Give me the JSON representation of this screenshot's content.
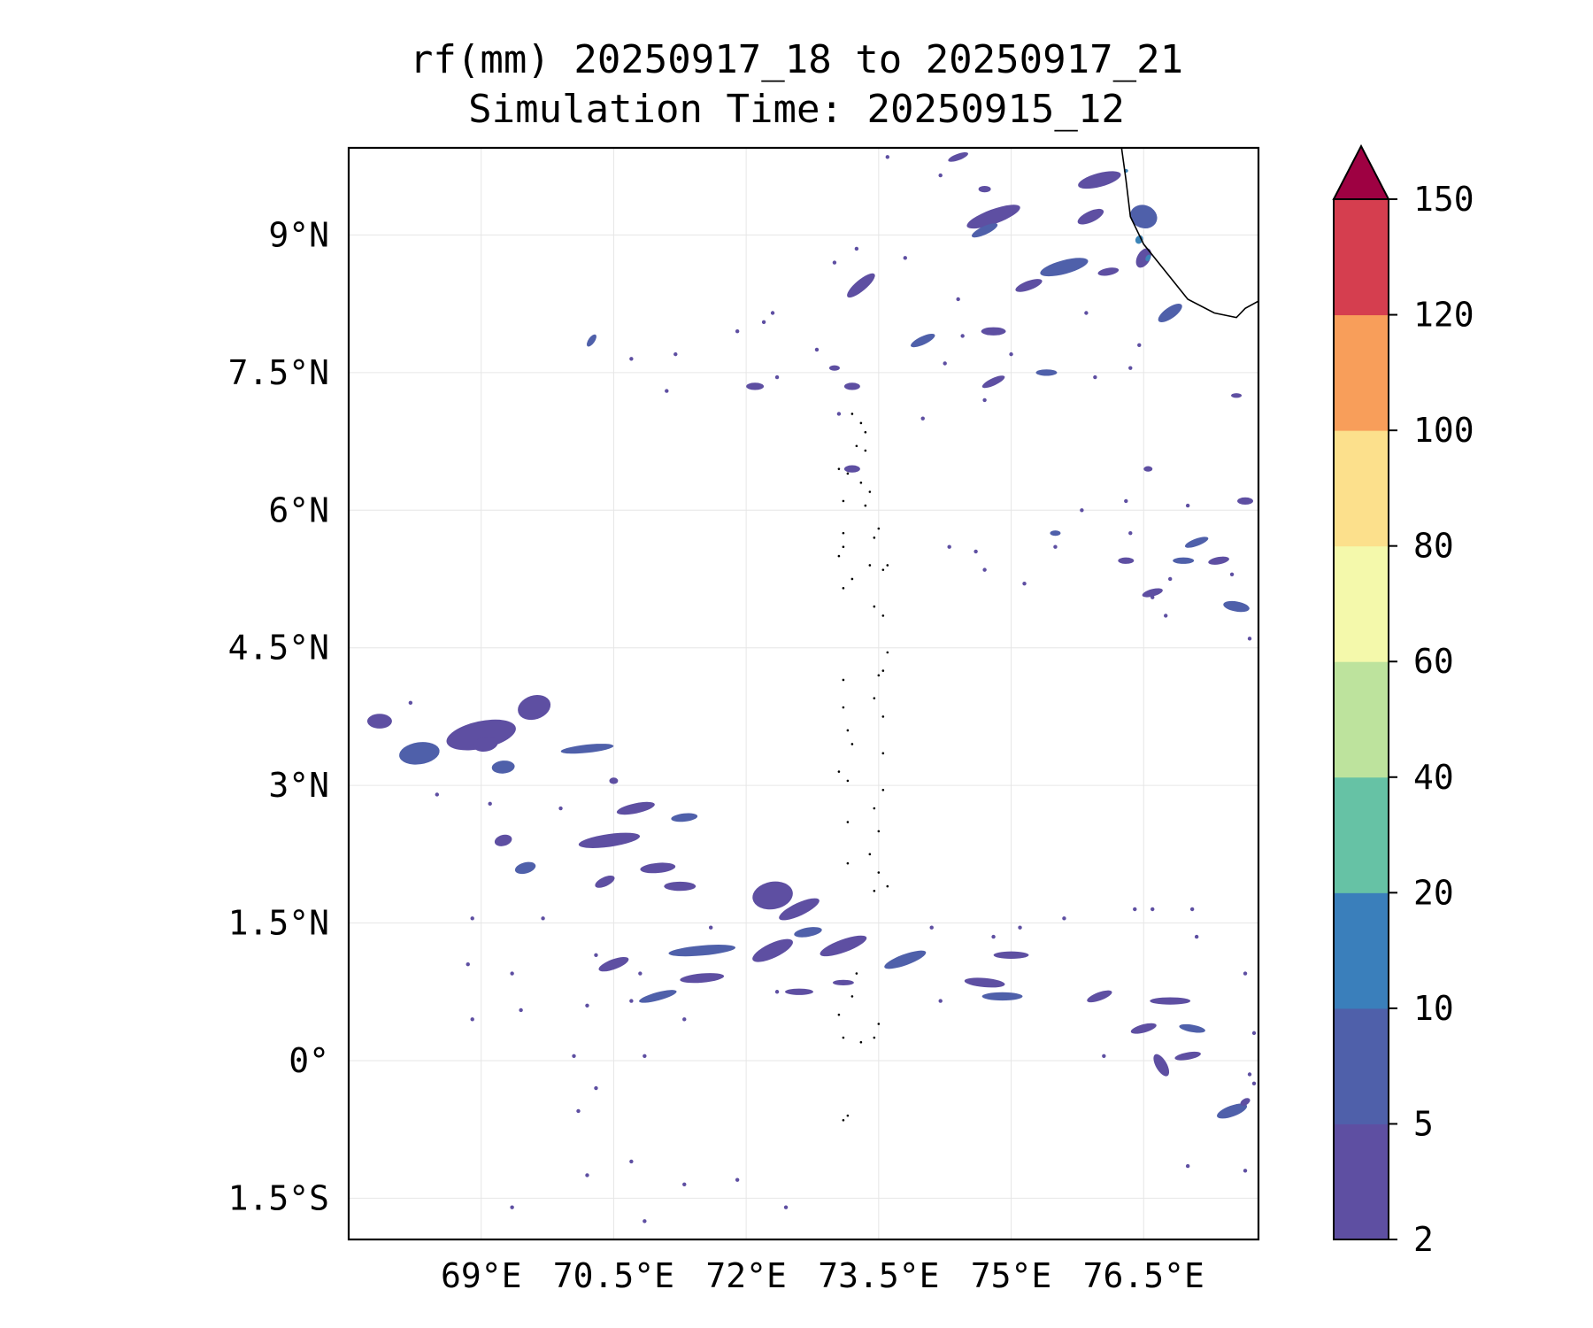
{
  "title": {
    "line1": "rf(mm) 20250917_18 to 20250917_21",
    "line2": "Simulation Time: 20250915_12"
  },
  "map": {
    "lon_range": [
      67.5,
      77.8
    ],
    "lat_range": [
      -1.95,
      9.95
    ],
    "lat_ticks": [
      {
        "value": 9,
        "label": "9°N"
      },
      {
        "value": 7.5,
        "label": "7.5°N"
      },
      {
        "value": 6,
        "label": "6°N"
      },
      {
        "value": 4.5,
        "label": "4.5°N"
      },
      {
        "value": 3,
        "label": "3°N"
      },
      {
        "value": 1.5,
        "label": "1.5°N"
      },
      {
        "value": 0,
        "label": "0°"
      },
      {
        "value": -1.5,
        "label": "1.5°S"
      }
    ],
    "lon_ticks": [
      {
        "value": 69,
        "label": "69°E"
      },
      {
        "value": 70.5,
        "label": "70.5°E"
      },
      {
        "value": 72,
        "label": "72°E"
      },
      {
        "value": 73.5,
        "label": "73.5°E"
      },
      {
        "value": 75,
        "label": "75°E"
      },
      {
        "value": 76.5,
        "label": "76.5°E"
      }
    ],
    "gridlines": true,
    "coastline_india": [
      [
        76.25,
        9.95
      ],
      [
        76.3,
        9.6
      ],
      [
        76.35,
        9.2
      ],
      [
        76.5,
        8.9
      ],
      [
        76.75,
        8.6
      ],
      [
        77.0,
        8.3
      ],
      [
        77.3,
        8.15
      ],
      [
        77.55,
        8.1
      ],
      [
        77.65,
        8.2
      ],
      [
        77.8,
        8.28
      ]
    ],
    "maldives_atolls": [
      [
        73.2,
        7.05
      ],
      [
        73.3,
        6.95
      ],
      [
        73.35,
        6.85
      ],
      [
        73.25,
        6.7
      ],
      [
        73.35,
        6.65
      ],
      [
        73.05,
        6.45
      ],
      [
        73.15,
        6.4
      ],
      [
        73.3,
        6.3
      ],
      [
        73.4,
        6.2
      ],
      [
        73.1,
        6.1
      ],
      [
        73.35,
        6.05
      ],
      [
        73.5,
        5.8
      ],
      [
        73.45,
        5.7
      ],
      [
        73.1,
        5.75
      ],
      [
        73.1,
        5.6
      ],
      [
        73.05,
        5.5
      ],
      [
        73.4,
        5.4
      ],
      [
        73.55,
        5.35
      ],
      [
        73.6,
        5.4
      ],
      [
        73.2,
        5.25
      ],
      [
        73.1,
        5.15
      ],
      [
        73.45,
        4.95
      ],
      [
        73.55,
        4.85
      ],
      [
        73.6,
        4.45
      ],
      [
        73.5,
        4.2
      ],
      [
        73.55,
        4.25
      ],
      [
        73.1,
        4.15
      ],
      [
        73.45,
        3.95
      ],
      [
        73.1,
        3.85
      ],
      [
        73.55,
        3.75
      ],
      [
        73.15,
        3.6
      ],
      [
        73.2,
        3.45
      ],
      [
        73.55,
        3.35
      ],
      [
        73.05,
        3.15
      ],
      [
        73.15,
        3.05
      ],
      [
        73.55,
        2.95
      ],
      [
        73.45,
        2.75
      ],
      [
        73.15,
        2.6
      ],
      [
        73.5,
        2.5
      ],
      [
        73.4,
        2.25
      ],
      [
        73.15,
        2.15
      ],
      [
        73.5,
        2.05
      ],
      [
        73.6,
        1.9
      ],
      [
        73.45,
        1.85
      ],
      [
        73.25,
        0.95
      ],
      [
        73.2,
        0.7
      ],
      [
        73.05,
        0.5
      ],
      [
        73.1,
        0.25
      ],
      [
        73.3,
        0.2
      ],
      [
        73.45,
        0.25
      ],
      [
        73.5,
        0.4
      ],
      [
        73.15,
        -0.6
      ],
      [
        73.1,
        -0.65
      ]
    ]
  },
  "rain_shading": {
    "legend_min": "2",
    "colors": {
      "2-5": "#5e4fa2",
      "5-10": "#4f60aa",
      "10-20": "#3c85b8"
    },
    "cells": [
      [
        69.0,
        3.55,
        4,
        1.5,
        -12
      ],
      [
        68.3,
        3.35,
        2.3,
        1.2,
        -8
      ],
      [
        69.05,
        3.45,
        1.4,
        0.8,
        -10
      ],
      [
        69.6,
        3.85,
        1.9,
        1.3,
        -18
      ],
      [
        69.25,
        3.2,
        1.3,
        0.7,
        -5
      ],
      [
        67.85,
        3.7,
        1.4,
        0.8,
        0
      ],
      [
        69.25,
        2.4,
        1,
        0.6,
        -15
      ],
      [
        70.2,
        3.4,
        3,
        0.45,
        -6
      ],
      [
        70.5,
        3.05,
        0.5,
        0.35,
        0
      ],
      [
        70.75,
        2.75,
        2.2,
        0.55,
        -12
      ],
      [
        71.3,
        2.65,
        1.5,
        0.45,
        -6
      ],
      [
        70.45,
        2.4,
        3.5,
        0.7,
        -8
      ],
      [
        71.0,
        2.1,
        2,
        0.55,
        -5
      ],
      [
        69.5,
        2.1,
        1.2,
        0.6,
        -15
      ],
      [
        70.4,
        1.95,
        1.2,
        0.5,
        -25
      ],
      [
        71.25,
        1.9,
        1.8,
        0.5,
        0
      ],
      [
        72.2,
        1.85,
        1.1,
        0.6,
        -20
      ],
      [
        72.3,
        1.8,
        2.3,
        1.5,
        -10
      ],
      [
        72.6,
        1.65,
        2.5,
        0.7,
        -25
      ],
      [
        72.7,
        1.4,
        1.6,
        0.5,
        -10
      ],
      [
        73.1,
        1.25,
        2.8,
        0.7,
        -20
      ],
      [
        72.3,
        1.2,
        2.5,
        0.8,
        -25
      ],
      [
        71.5,
        1.2,
        3.8,
        0.55,
        -5
      ],
      [
        70.5,
        1.05,
        1.8,
        0.55,
        -20
      ],
      [
        71.5,
        0.9,
        2.5,
        0.5,
        -5
      ],
      [
        71.0,
        0.7,
        2.2,
        0.45,
        -15
      ],
      [
        72.6,
        0.75,
        1.6,
        0.35,
        0
      ],
      [
        73.1,
        0.85,
        1.2,
        0.3,
        0
      ],
      [
        73.8,
        1.1,
        2.5,
        0.6,
        -20
      ],
      [
        74.7,
        0.85,
        2.3,
        0.5,
        5
      ],
      [
        75.0,
        1.15,
        2,
        0.4,
        0
      ],
      [
        74.9,
        0.7,
        2.3,
        0.45,
        0
      ],
      [
        76.0,
        0.7,
        1.5,
        0.45,
        -20
      ],
      [
        76.5,
        0.35,
        1.5,
        0.45,
        -15
      ],
      [
        77.05,
        0.35,
        1.5,
        0.4,
        10
      ],
      [
        77.0,
        0.05,
        1.5,
        0.4,
        -10
      ],
      [
        76.7,
        -0.05,
        1.4,
        0.6,
        60
      ],
      [
        77.5,
        -0.55,
        1.8,
        0.6,
        -20
      ],
      [
        77.65,
        -0.45,
        0.6,
        0.35,
        -30
      ],
      [
        76.8,
        0.65,
        2.3,
        0.4,
        0
      ],
      [
        76.95,
        5.45,
        1.2,
        0.35,
        0
      ],
      [
        76.6,
        5.1,
        1.2,
        0.4,
        -15
      ],
      [
        77.35,
        5.45,
        1.2,
        0.4,
        -10
      ],
      [
        77.55,
        4.95,
        1.5,
        0.55,
        10
      ],
      [
        77.65,
        6.1,
        0.9,
        0.4,
        0
      ],
      [
        76.3,
        5.45,
        0.9,
        0.35,
        0
      ],
      [
        77.1,
        5.65,
        1.4,
        0.4,
        -20
      ],
      [
        76.55,
        6.45,
        0.5,
        0.3,
        0
      ],
      [
        77.55,
        7.25,
        0.6,
        0.25,
        0
      ],
      [
        75.5,
        5.75,
        0.6,
        0.3,
        0
      ],
      [
        73.3,
        8.45,
        2,
        0.6,
        -40
      ],
      [
        72.1,
        7.35,
        1,
        0.4,
        0
      ],
      [
        70.25,
        7.85,
        0.8,
        0.35,
        -55
      ],
      [
        73.0,
        7.55,
        0.6,
        0.3,
        0
      ],
      [
        73.2,
        7.35,
        0.9,
        0.4,
        0
      ],
      [
        74.0,
        7.85,
        1.5,
        0.45,
        -25
      ],
      [
        74.8,
        7.4,
        1.4,
        0.4,
        -25
      ],
      [
        74.8,
        7.95,
        1.4,
        0.45,
        0
      ],
      [
        75.4,
        7.5,
        1.2,
        0.35,
        0
      ],
      [
        73.2,
        6.45,
        0.9,
        0.4,
        0
      ],
      [
        74.8,
        9.2,
        3.2,
        0.8,
        -20
      ],
      [
        75.6,
        8.65,
        2.8,
        0.75,
        -15
      ],
      [
        75.2,
        8.45,
        1.6,
        0.5,
        -20
      ],
      [
        76.0,
        9.6,
        2.5,
        0.75,
        -15
      ],
      [
        76.8,
        8.15,
        1.6,
        0.6,
        -35
      ],
      [
        75.9,
        9.2,
        1.6,
        0.6,
        -25
      ],
      [
        74.7,
        9.5,
        0.7,
        0.35,
        0
      ],
      [
        74.7,
        9.05,
        1.6,
        0.45,
        -25
      ],
      [
        74.4,
        9.85,
        1.2,
        0.35,
        -20
      ],
      [
        76.1,
        8.6,
        1.2,
        0.4,
        -10
      ],
      [
        76.5,
        9.2,
        1.3,
        1.5,
        -70
      ],
      [
        76.5,
        8.75,
        1.2,
        0.7,
        -60
      ]
    ],
    "cells_10_20": [
      [
        76.45,
        8.95,
        0.5,
        0.4,
        -60
      ],
      [
        76.3,
        9.7,
        0.25,
        0.2,
        0
      ],
      [
        76.55,
        8.75,
        0.4,
        0.25,
        -60
      ]
    ],
    "dots": [
      [
        68.2,
        3.9
      ],
      [
        68.5,
        2.9
      ],
      [
        69.1,
        2.8
      ],
      [
        69.9,
        2.75
      ],
      [
        68.9,
        1.55
      ],
      [
        69.7,
        1.55
      ],
      [
        70.3,
        1.15
      ],
      [
        69.35,
        0.95
      ],
      [
        68.85,
        1.05
      ],
      [
        70.8,
        0.95
      ],
      [
        71.6,
        1.45
      ],
      [
        72.35,
        0.75
      ],
      [
        71.3,
        0.45
      ],
      [
        70.7,
        0.65
      ],
      [
        69.45,
        0.55
      ],
      [
        68.9,
        0.45
      ],
      [
        70.2,
        0.6
      ],
      [
        70.05,
        0.05
      ],
      [
        70.85,
        0.05
      ],
      [
        70.3,
        -0.3
      ],
      [
        70.1,
        -0.55
      ],
      [
        70.7,
        -1.1
      ],
      [
        71.3,
        -1.35
      ],
      [
        71.9,
        -1.3
      ],
      [
        72.45,
        -1.6
      ],
      [
        70.85,
        -1.75
      ],
      [
        70.2,
        -1.25
      ],
      [
        69.35,
        -1.6
      ],
      [
        74.2,
        0.65
      ],
      [
        75.6,
        1.55
      ],
      [
        76.4,
        1.65
      ],
      [
        76.6,
        1.65
      ],
      [
        77.05,
        1.65
      ],
      [
        77.1,
        1.35
      ],
      [
        77.65,
        0.95
      ],
      [
        77.75,
        0.3
      ],
      [
        77.7,
        -0.15
      ],
      [
        77.75,
        -0.25
      ],
      [
        76.05,
        0.05
      ],
      [
        77.0,
        -1.15
      ],
      [
        77.65,
        -1.2
      ],
      [
        74.1,
        1.45
      ],
      [
        74.8,
        1.35
      ],
      [
        75.1,
        1.45
      ],
      [
        76.6,
        5.05
      ],
      [
        77.5,
        5.3
      ],
      [
        74.3,
        5.6
      ],
      [
        74.6,
        5.55
      ],
      [
        75.5,
        5.6
      ],
      [
        76.35,
        5.75
      ],
      [
        76.8,
        5.25
      ],
      [
        76.75,
        4.85
      ],
      [
        77.7,
        4.6
      ],
      [
        74.7,
        5.35
      ],
      [
        75.15,
        5.2
      ],
      [
        75.8,
        6.0
      ],
      [
        76.3,
        6.1
      ],
      [
        77.0,
        6.05
      ],
      [
        72.2,
        8.05
      ],
      [
        72.8,
        7.75
      ],
      [
        72.35,
        7.45
      ],
      [
        71.2,
        7.7
      ],
      [
        70.7,
        7.65
      ],
      [
        71.1,
        7.3
      ],
      [
        71.9,
        7.95
      ],
      [
        72.3,
        8.15
      ],
      [
        73.0,
        8.7
      ],
      [
        74.0,
        7.0
      ],
      [
        75.95,
        7.45
      ],
      [
        76.45,
        7.8
      ],
      [
        76.35,
        7.55
      ],
      [
        75.85,
        8.15
      ],
      [
        74.4,
        8.3
      ],
      [
        73.6,
        9.85
      ],
      [
        74.2,
        9.65
      ],
      [
        73.8,
        8.75
      ],
      [
        73.25,
        8.85
      ],
      [
        73.05,
        7.05
      ],
      [
        74.25,
        7.6
      ],
      [
        75.0,
        7.7
      ],
      [
        74.7,
        7.2
      ],
      [
        74.45,
        7.9
      ]
    ]
  },
  "colorbar": {
    "levels": [
      "2",
      "5",
      "10",
      "20",
      "40",
      "60",
      "80",
      "100",
      "120",
      "150"
    ],
    "colors": [
      "#5e4fa2",
      "#4f60aa",
      "#3a7fbb",
      "#66c2a5",
      "#bde39d",
      "#f4f9ab",
      "#fce08c",
      "#f89e5a",
      "#d53e4f"
    ],
    "extend_color": "#9e0142",
    "extend": "max"
  }
}
